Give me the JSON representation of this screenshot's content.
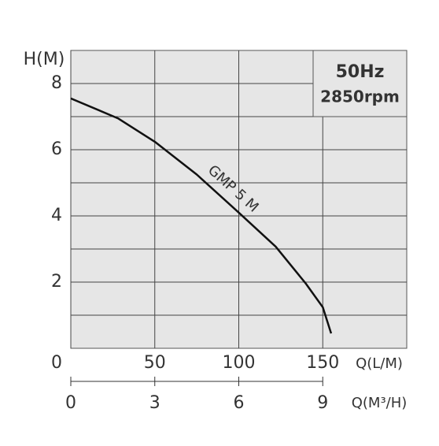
{
  "chart_data": {
    "type": "line",
    "y_label": "H(M)",
    "x_label": "Q(L/M)",
    "x2_label": "Q(M³/H)",
    "annotation": "GMP 5 M",
    "box_lines": [
      "50Hz",
      "2850rpm"
    ],
    "x": [
      0,
      28,
      50,
      75,
      100,
      122,
      140,
      150,
      155
    ],
    "series": [
      {
        "color": "#111111",
        "values": [
          7.55,
          6.95,
          6.24,
          5.25,
          4.1,
          3.07,
          1.95,
          1.24,
          0.45
        ]
      }
    ],
    "xlim": [
      0,
      200
    ],
    "xticks": [
      0,
      50,
      100,
      150
    ],
    "ylim": [
      0,
      9
    ],
    "yticks": [
      2,
      4,
      6,
      8
    ],
    "minor_yticks": [
      1,
      3,
      5,
      7
    ],
    "x2lim": [
      0,
      12
    ],
    "x2ticks": [
      0,
      3,
      6,
      9
    ],
    "grid": true
  }
}
